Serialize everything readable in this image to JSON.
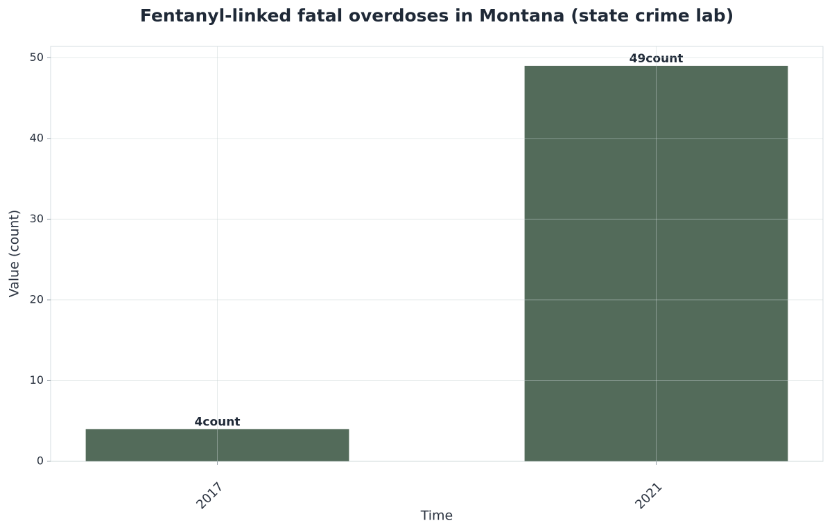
{
  "chart_data": {
    "type": "bar",
    "title": "Fentanyl-linked fatal overdoses in Montana (state crime lab)",
    "x_label": "Time",
    "y_label": "Value (count)",
    "categories": [
      "2017",
      "2021"
    ],
    "values": [
      4,
      49
    ],
    "value_labels": [
      "4count",
      "49count"
    ],
    "color": "#536b5a",
    "ylim": [
      0,
      51.4
    ],
    "yticks": [
      0,
      10,
      20,
      30,
      40,
      50
    ],
    "grid": true
  }
}
